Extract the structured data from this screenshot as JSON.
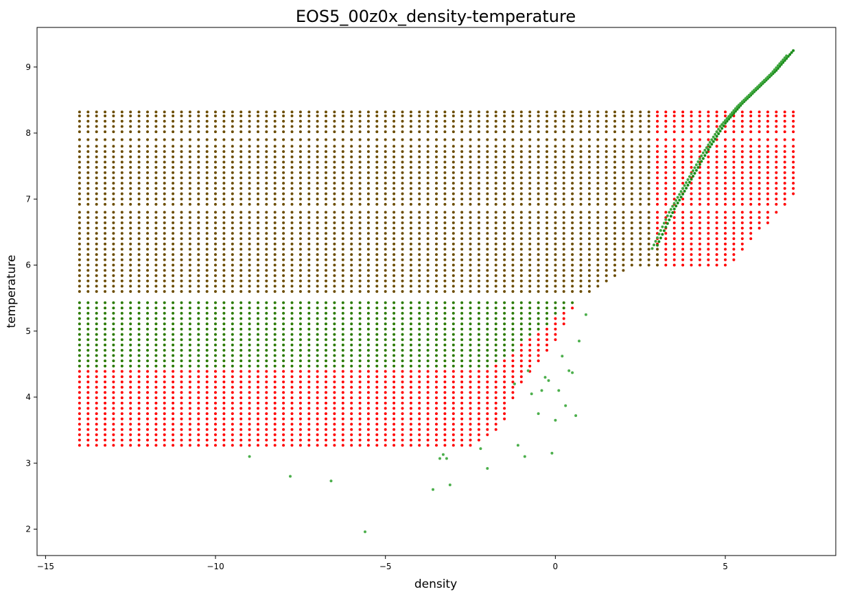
{
  "chart_data": {
    "type": "scatter",
    "title": "EOS5_00z0x_density-temperature",
    "xlabel": "density",
    "ylabel": "temperature",
    "xlim": [
      -15.25,
      8.25
    ],
    "ylim": [
      1.6,
      9.6
    ],
    "xticks": [
      -15,
      -10,
      -5,
      0,
      5
    ],
    "yticks": [
      2,
      3,
      4,
      5,
      6,
      7,
      8,
      9
    ],
    "grid": false,
    "legend": "none",
    "marker_size": 2,
    "grid_description": {
      "density_min": -14.0,
      "density_max": 7.0,
      "density_step": 0.25,
      "temperature_levels": [
        3.27,
        3.35,
        3.43,
        3.51,
        3.59,
        3.67,
        3.75,
        3.83,
        3.91,
        3.99,
        4.07,
        4.15,
        4.23,
        4.31,
        4.39,
        4.47,
        4.55,
        4.63,
        4.71,
        4.79,
        4.87,
        4.95,
        5.03,
        5.11,
        5.19,
        5.27,
        5.35,
        5.43,
        5.6,
        5.68,
        5.76,
        5.84,
        5.92,
        6.0,
        6.08,
        6.16,
        6.24,
        6.32,
        6.4,
        6.48,
        6.56,
        6.64,
        6.72,
        6.8,
        6.92,
        7.0,
        7.08,
        7.16,
        7.24,
        7.32,
        7.4,
        7.48,
        7.56,
        7.64,
        7.72,
        7.8,
        7.9,
        8.02,
        8.1,
        8.18,
        8.26,
        8.32
      ]
    },
    "series": [
      {
        "color": "#ff0000",
        "description": "tabulated grid points",
        "boundary": [
          [
            -2.5,
            3.27
          ],
          [
            -1.6,
            3.5
          ],
          [
            -1.4,
            3.85
          ],
          [
            -1.0,
            4.2
          ],
          [
            -0.5,
            4.5
          ],
          [
            0.0,
            4.85
          ],
          [
            0.3,
            5.1
          ],
          [
            0.65,
            5.5
          ],
          [
            2.25,
            6.0
          ],
          [
            5.1,
            6.0
          ],
          [
            7.0,
            7.05
          ]
        ]
      },
      {
        "color": "#2e8b2e",
        "description": "model points",
        "upper_tail": {
          "x": [
            3.0,
            3.5,
            4.0,
            4.5,
            5.0,
            5.5,
            6.0,
            6.5,
            7.0
          ],
          "y": [
            6.3,
            6.85,
            7.3,
            7.75,
            8.15,
            8.45,
            8.7,
            8.95,
            9.25
          ]
        },
        "outliers": {
          "x": [
            -9.0,
            -7.8,
            -6.6,
            -5.6,
            -3.6,
            -3.4,
            -3.3,
            -3.2,
            -3.1,
            -2.2,
            -2.0,
            -1.1,
            -0.9,
            -0.7,
            -0.5,
            -0.2,
            -0.1,
            0.0,
            0.1,
            0.3,
            0.5,
            0.6,
            0.7,
            0.9,
            0.4,
            0.2,
            -0.3,
            -0.4,
            -0.8,
            -1.2
          ],
          "y": [
            3.1,
            2.8,
            2.73,
            1.96,
            2.6,
            3.07,
            3.13,
            3.07,
            2.67,
            3.22,
            2.92,
            3.27,
            3.1,
            4.05,
            3.75,
            4.25,
            3.15,
            3.65,
            4.1,
            3.87,
            4.37,
            3.72,
            4.85,
            5.25,
            4.4,
            4.62,
            4.3,
            4.1,
            4.4,
            4.2
          ]
        }
      },
      {
        "color": "#6b4c00",
        "description": "overlap region"
      }
    ]
  }
}
